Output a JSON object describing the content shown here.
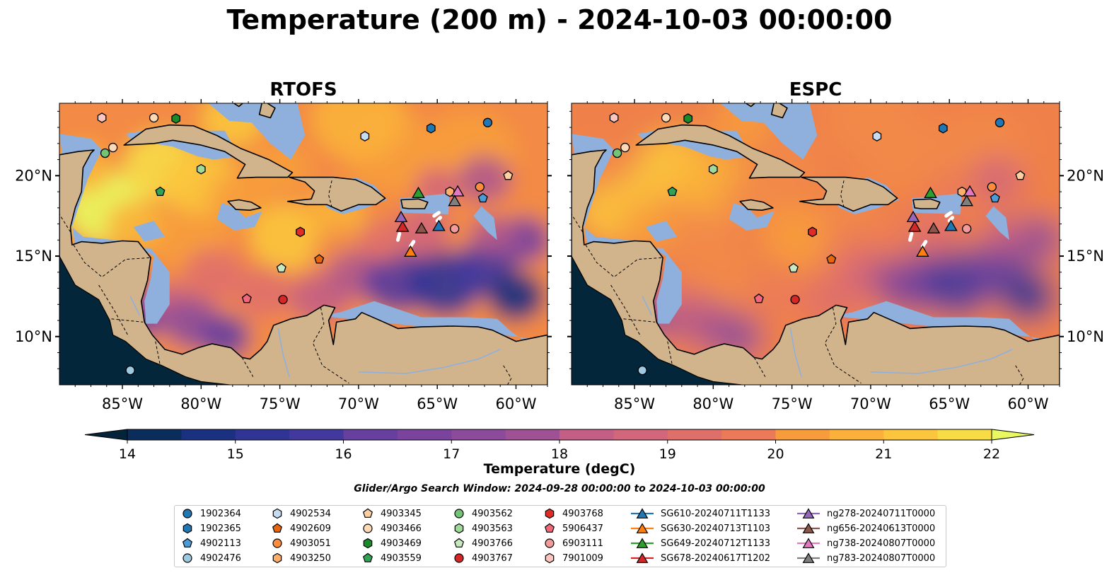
{
  "figure": {
    "title": "Temperature (200 m) - 2024-10-03 00:00:00",
    "search_window": "Glider/Argo Search Window: 2024-09-28 00:00:00 to 2024-10-03 00:00:00"
  },
  "colors": {
    "land": "#d2b48c",
    "shelf_water": "#8fb0dd",
    "coast": "#000000",
    "colormap": [
      "#03243a",
      "#0b2d5c",
      "#1a3080",
      "#303595",
      "#42389d",
      "#553b9e",
      "#673f9e",
      "#7a439d",
      "#8c4b9a",
      "#9e5294",
      "#b0588c",
      "#c35f84",
      "#d2667a",
      "#df6f6a",
      "#ea7a58",
      "#f28a48",
      "#f79c3d",
      "#fab03a",
      "#fbc53d",
      "#f7dc46",
      "#e9f85e"
    ]
  },
  "map": {
    "lon_range": [
      -89,
      -58
    ],
    "lat_range": [
      7,
      24.5
    ],
    "lon_ticks": [
      "85°W",
      "80°W",
      "75°W",
      "70°W",
      "65°W",
      "60°W"
    ],
    "lat_ticks": [
      "20°N",
      "15°N",
      "10°N"
    ],
    "panels": [
      {
        "title": "RTOFS"
      },
      {
        "title": "ESPC"
      }
    ]
  },
  "colorbar": {
    "label": "Temperature (degC)",
    "min": 14,
    "max": 22,
    "tick_labels": [
      "14",
      "15",
      "16",
      "17",
      "18",
      "19",
      "20",
      "21",
      "22"
    ],
    "extend": "both"
  },
  "legend": {
    "columns": [
      [
        {
          "label": "1902364",
          "marker": "circle",
          "color": "#1f77b4"
        },
        {
          "label": "1902365",
          "marker": "hexagon",
          "color": "#1f77b4"
        },
        {
          "label": "4902113",
          "marker": "pentagon",
          "color": "#4a9bd6"
        },
        {
          "label": "4902476",
          "marker": "circle",
          "color": "#9ecae1"
        }
      ],
      [
        {
          "label": "4902534",
          "marker": "hexagon",
          "color": "#c6dbef"
        },
        {
          "label": "4902609",
          "marker": "pentagon",
          "color": "#e6650d"
        },
        {
          "label": "4903051",
          "marker": "circle",
          "color": "#fd8d3c"
        },
        {
          "label": "4903250",
          "marker": "hexagon",
          "color": "#fdae6b"
        }
      ],
      [
        {
          "label": "4903345",
          "marker": "pentagon",
          "color": "#fdd0a2"
        },
        {
          "label": "4903466",
          "marker": "circle",
          "color": "#fdd9b5"
        },
        {
          "label": "4903469",
          "marker": "hexagon",
          "color": "#1a8a2a"
        },
        {
          "label": "4903559",
          "marker": "pentagon",
          "color": "#31a354"
        }
      ],
      [
        {
          "label": "4903562",
          "marker": "circle",
          "color": "#74c476"
        },
        {
          "label": "4903563",
          "marker": "hexagon",
          "color": "#a1d99b"
        },
        {
          "label": "4903766",
          "marker": "pentagon",
          "color": "#c7e9c0"
        },
        {
          "label": "4903767",
          "marker": "circle",
          "color": "#d62728"
        }
      ],
      [
        {
          "label": "4903768",
          "marker": "hexagon",
          "color": "#de2d26"
        },
        {
          "label": "5906437",
          "marker": "pentagon",
          "color": "#f0687a"
        },
        {
          "label": "6903111",
          "marker": "circle",
          "color": "#f39a9a"
        },
        {
          "label": "7901009",
          "marker": "hexagon",
          "color": "#fcc5c0"
        }
      ],
      [
        {
          "label": "SG610-20240711T1133",
          "marker": "triangle",
          "color": "#1f77b4"
        },
        {
          "label": "SG630-20240713T1103",
          "marker": "triangle",
          "color": "#ff7f0e"
        },
        {
          "label": "SG649-20240712T1133",
          "marker": "triangle",
          "color": "#2ca02c"
        },
        {
          "label": "SG678-20240617T1202",
          "marker": "triangle",
          "color": "#d62728"
        }
      ],
      [
        {
          "label": "ng278-20240711T0000",
          "marker": "triangle",
          "color": "#9467bd"
        },
        {
          "label": "ng656-20240613T0000",
          "marker": "triangle",
          "color": "#8c564b"
        },
        {
          "label": "ng738-20240807T0000",
          "marker": "triangle",
          "color": "#e377c2"
        },
        {
          "label": "ng783-20240807T0000",
          "marker": "triangle",
          "color": "#7f7f7f"
        }
      ]
    ]
  },
  "observations": [
    {
      "id": "1902364",
      "lon": -61.8,
      "lat": 23.3
    },
    {
      "id": "1902365",
      "lon": -65.4,
      "lat": 22.95
    },
    {
      "id": "4902113",
      "lon": -62.1,
      "lat": 18.6
    },
    {
      "id": "4902476",
      "lon": -84.5,
      "lat": 7.9
    },
    {
      "id": "4902534",
      "lon": -69.6,
      "lat": 22.45
    },
    {
      "id": "4902609",
      "lon": -72.5,
      "lat": 14.8
    },
    {
      "id": "4903051",
      "lon": -62.3,
      "lat": 19.3
    },
    {
      "id": "4903250",
      "lon": -64.2,
      "lat": 19.0
    },
    {
      "id": "4903345",
      "lon": -60.5,
      "lat": 20.0
    },
    {
      "id": "4903466",
      "lon": -83.0,
      "lat": 23.6
    },
    {
      "id": "4903466",
      "lon": -85.6,
      "lat": 21.75
    },
    {
      "id": "4903469",
      "lon": -81.6,
      "lat": 23.55
    },
    {
      "id": "4903559",
      "lon": -82.6,
      "lat": 19.0
    },
    {
      "id": "4903562",
      "lon": -86.1,
      "lat": 21.4
    },
    {
      "id": "4903563",
      "lon": -80.0,
      "lat": 20.4
    },
    {
      "id": "4903766",
      "lon": -74.9,
      "lat": 14.25
    },
    {
      "id": "4903767",
      "lon": -74.8,
      "lat": 12.3
    },
    {
      "id": "4903768",
      "lon": -73.7,
      "lat": 16.5
    },
    {
      "id": "5906437",
      "lon": -77.1,
      "lat": 12.35
    },
    {
      "id": "6903111",
      "lon": -63.9,
      "lat": 16.7
    },
    {
      "id": "7901009",
      "lon": -86.3,
      "lat": 23.6
    }
  ],
  "gliders": [
    {
      "id": "SG610-20240711T1133",
      "lon": -64.9,
      "lat": 16.9
    },
    {
      "id": "SG630-20240713T1103",
      "lon": -66.7,
      "lat": 15.3
    },
    {
      "id": "SG649-20240712T1133",
      "lon": -66.2,
      "lat": 18.95
    },
    {
      "id": "SG678-20240617T1202",
      "lon": -67.2,
      "lat": 16.85
    },
    {
      "id": "ng278-20240711T0000",
      "lon": -67.3,
      "lat": 17.45
    },
    {
      "id": "ng656-20240613T0000",
      "lon": -66.0,
      "lat": 16.75
    },
    {
      "id": "ng738-20240807T0000",
      "lon": -63.7,
      "lat": 19.05
    },
    {
      "id": "ng783-20240807T0000",
      "lon": -63.9,
      "lat": 18.45
    }
  ]
}
